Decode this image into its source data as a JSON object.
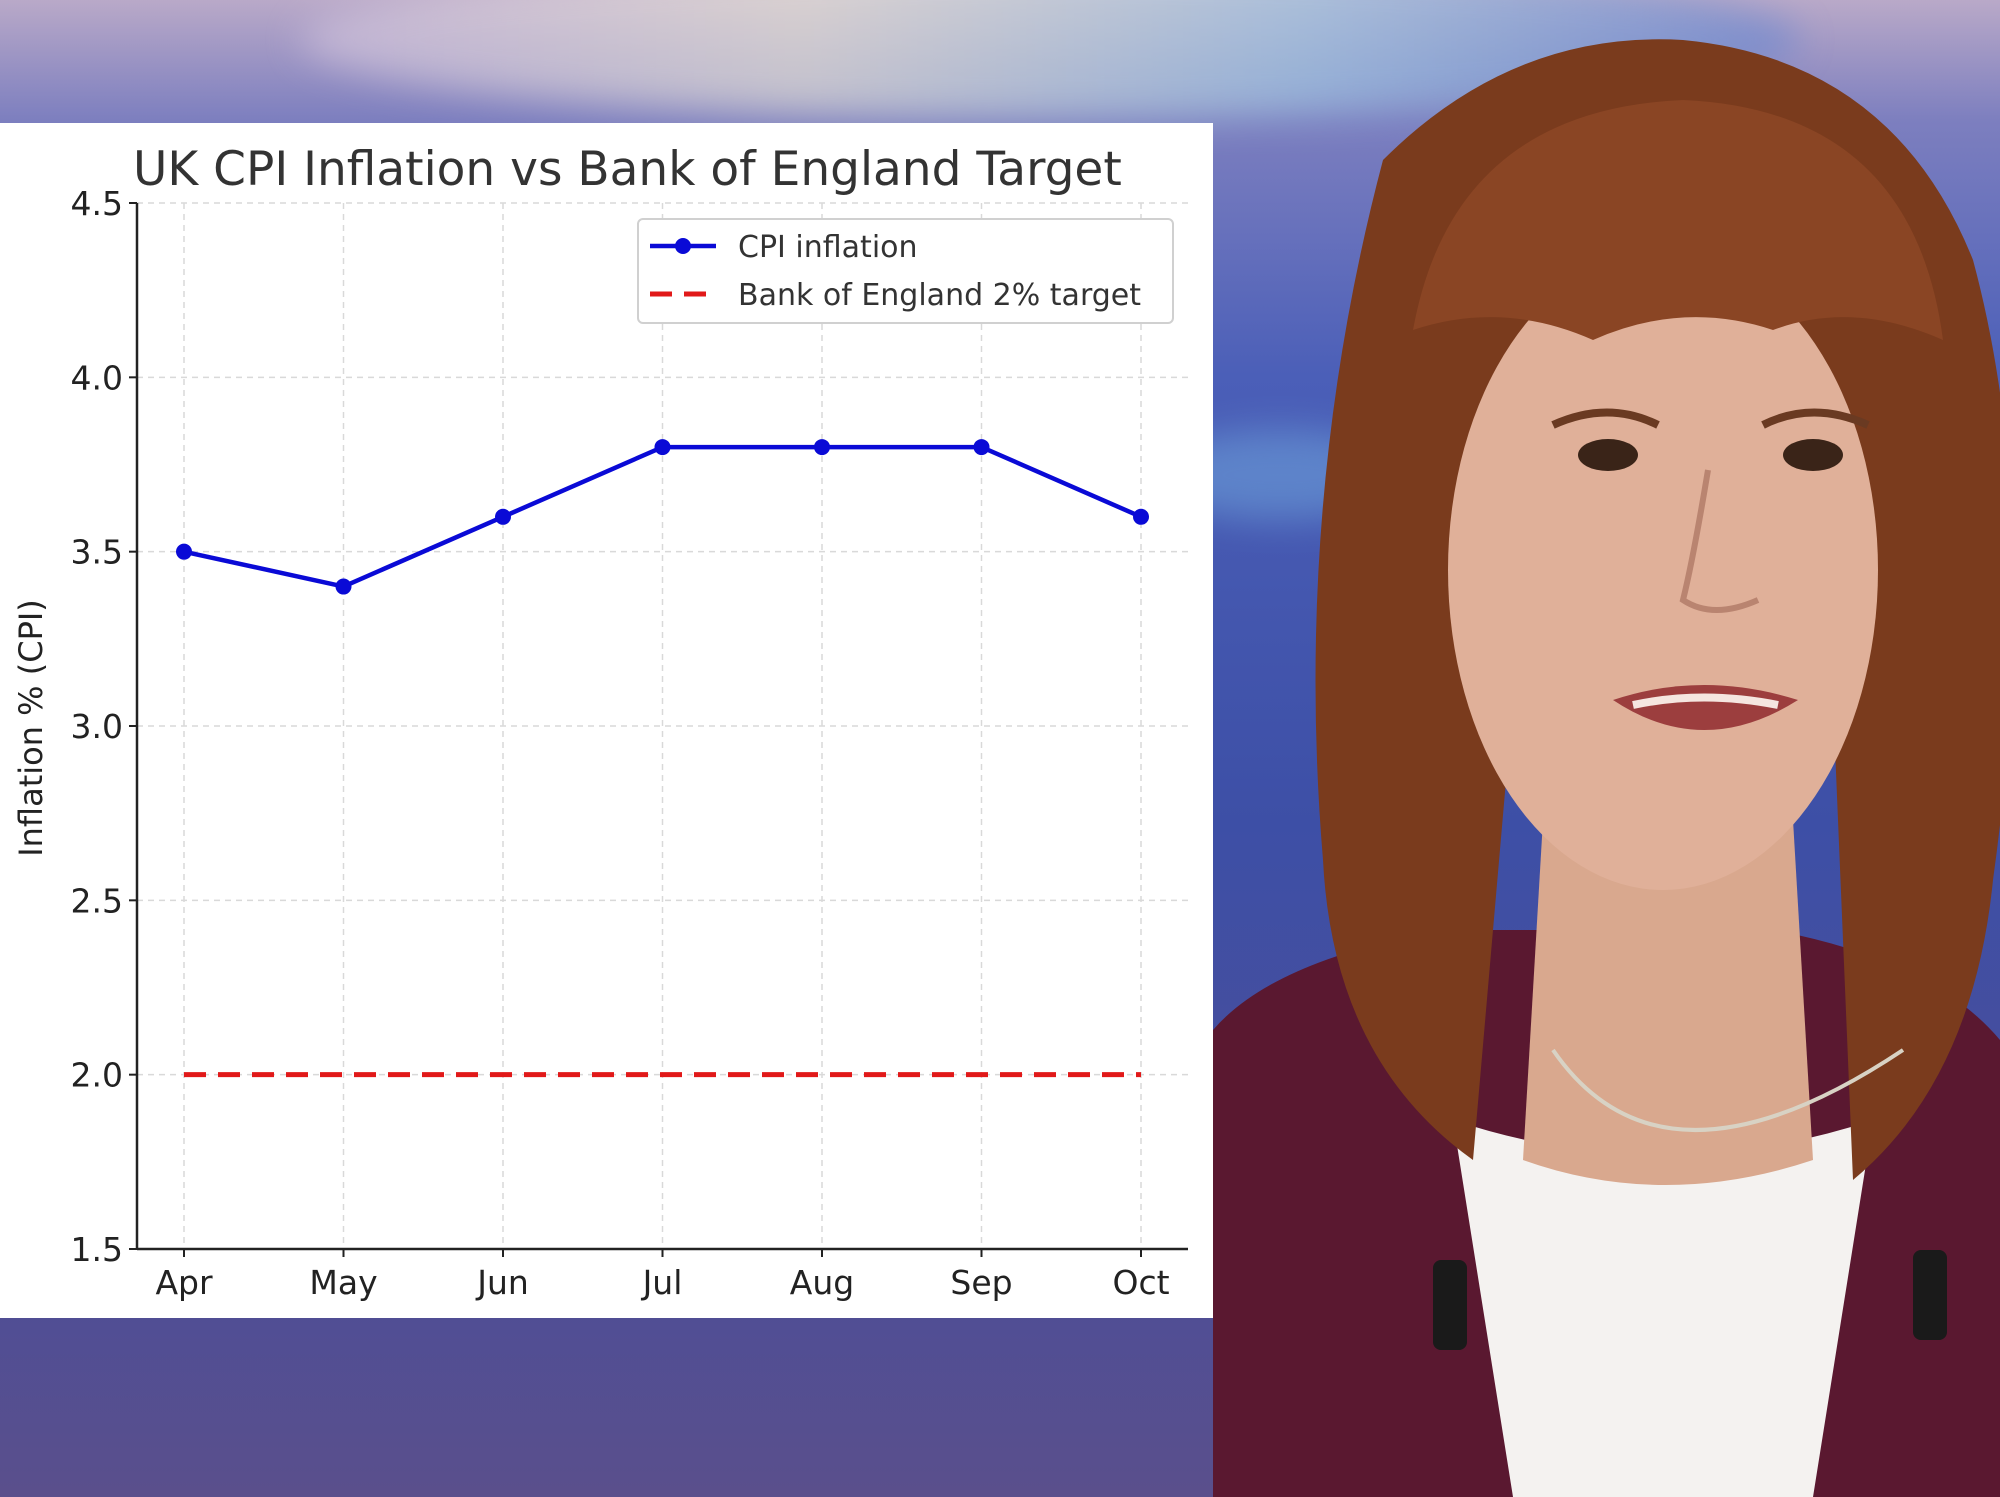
{
  "colors": {
    "cpi_line": "#0a0ad6",
    "target_line": "#e11919",
    "panel_bg": "#ffffff",
    "grid": "#d9d9d9"
  },
  "photo": {
    "subject": "woman-speaking-portrait"
  },
  "chart_data": {
    "type": "line",
    "title": "UK CPI Inflation vs Bank of England Target",
    "xlabel": "",
    "ylabel": "Inflation % (CPI)",
    "categories": [
      "Apr",
      "May",
      "Jun",
      "Jul",
      "Aug",
      "Sep",
      "Oct"
    ],
    "ylim": [
      1.5,
      4.5
    ],
    "yticks": [
      "1.5",
      "2.0",
      "2.5",
      "3.0",
      "3.5",
      "4.0",
      "4.5"
    ],
    "grid": true,
    "legend_position": "top-right",
    "series": [
      {
        "name": "CPI inflation",
        "values": [
          3.5,
          3.4,
          3.6,
          3.8,
          3.8,
          3.8,
          3.6
        ],
        "style": "solid-with-markers"
      },
      {
        "name": "Bank of England 2% target",
        "values": [
          2.0,
          2.0,
          2.0,
          2.0,
          2.0,
          2.0,
          2.0
        ],
        "style": "dashed"
      }
    ]
  }
}
